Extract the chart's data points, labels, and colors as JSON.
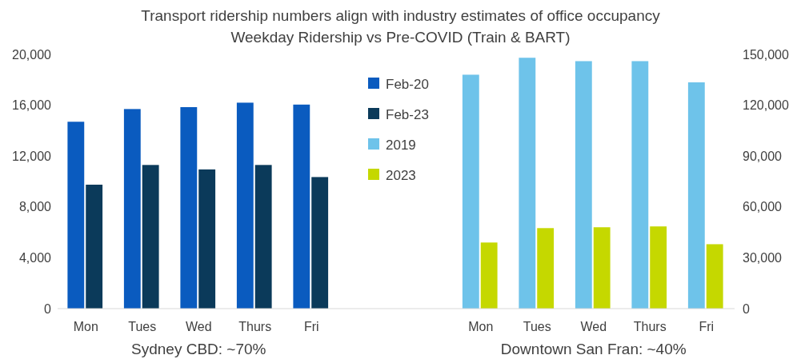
{
  "chart_data": {
    "type": "bar",
    "title": "Transport ridership numbers align with industry estimates of office occupancy",
    "subtitle": "Weekday Ridership vs Pre-COVID (Train & BART)",
    "categories": [
      "Mon",
      "Tues",
      "Wed",
      "Thurs",
      "Fri",
      null,
      null,
      "Mon",
      "Tues",
      "Wed",
      "Thurs",
      "Fri"
    ],
    "series": [
      {
        "name": "Feb-20",
        "color": "#0a5bbf",
        "values": [
          14700,
          15700,
          15850,
          16200,
          16050,
          null,
          null,
          null,
          null,
          null,
          null,
          null
        ]
      },
      {
        "name": "Feb-23",
        "color": "#0b3a5a",
        "values": [
          9750,
          11300,
          10950,
          11300,
          10350,
          null,
          null,
          null,
          null,
          null,
          null,
          null
        ]
      },
      {
        "name": "2019",
        "color": "#6ec3ea",
        "axis": "y2",
        "values": [
          null,
          null,
          null,
          null,
          null,
          null,
          null,
          138000,
          148000,
          146000,
          146000,
          133500
        ]
      },
      {
        "name": "2023",
        "color": "#c5d800",
        "axis": "y2",
        "values": [
          null,
          null,
          null,
          null,
          null,
          null,
          null,
          39000,
          47500,
          48000,
          48500,
          38000
        ]
      }
    ],
    "ylim": [
      0,
      20000
    ],
    "yticks": [
      {
        "value": 0,
        "label": "0"
      },
      {
        "value": 4000,
        "label": "4,000"
      },
      {
        "value": 8000,
        "label": "8,000"
      },
      {
        "value": 12000,
        "label": "12,000"
      },
      {
        "value": 16000,
        "label": "16,000"
      },
      {
        "value": 20000,
        "label": "20,000"
      }
    ],
    "y2lim": [
      0,
      150000
    ],
    "y2ticks": [
      {
        "value": 0,
        "label": "0"
      },
      {
        "value": 30000,
        "label": "30,000"
      },
      {
        "value": 60000,
        "label": "60,000"
      },
      {
        "value": 90000,
        "label": "90,000"
      },
      {
        "value": 120000,
        "label": "120,000"
      },
      {
        "value": 150000,
        "label": "150,000"
      }
    ],
    "annotations": [
      "Sydney CBD: ~70%",
      "Downtown San Fran: ~40%"
    ],
    "legend": "top"
  }
}
